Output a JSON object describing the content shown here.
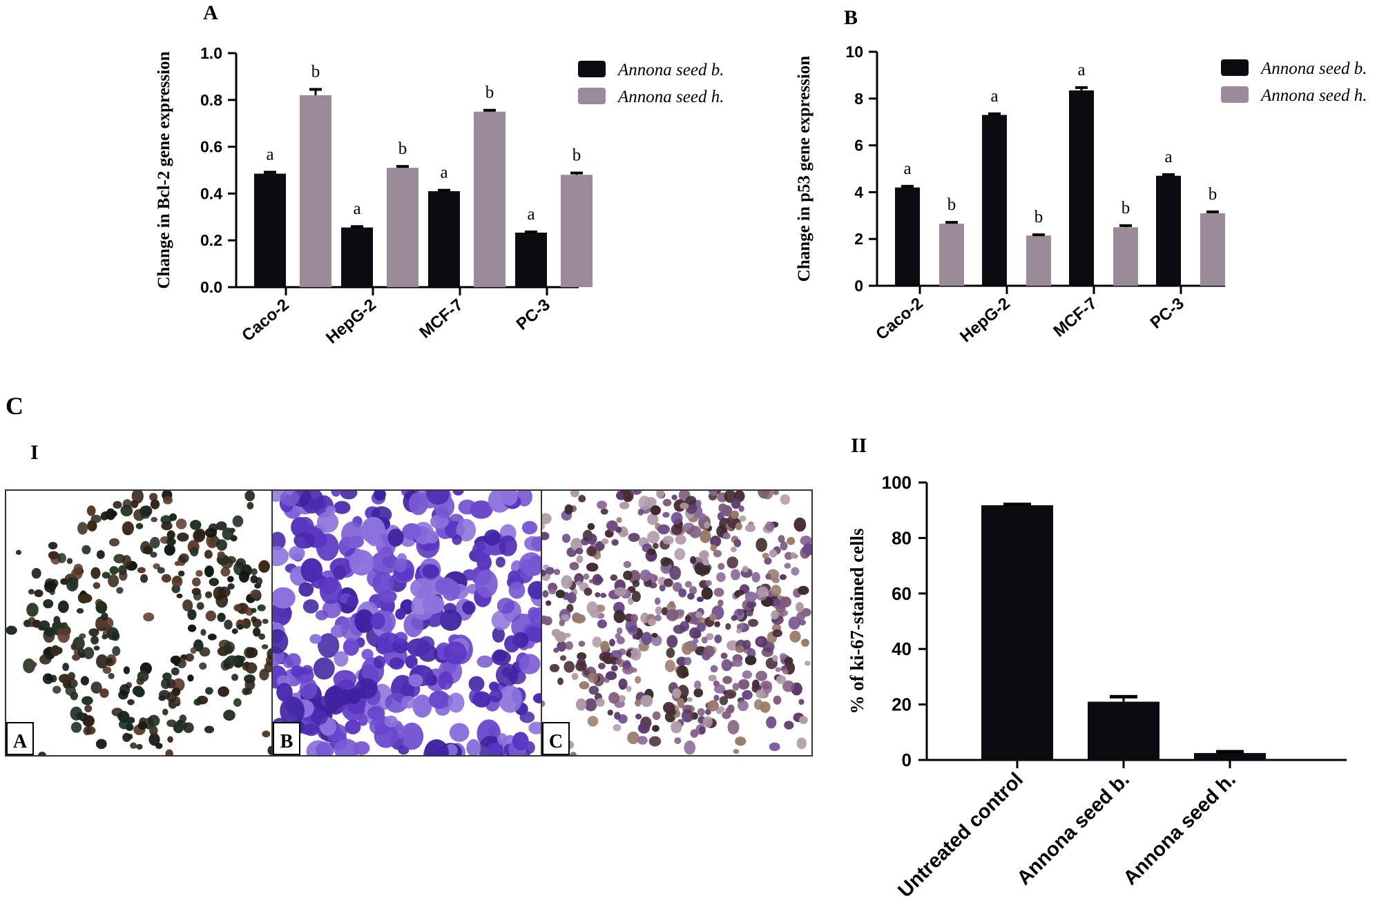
{
  "colors": {
    "seed_b": "#0d0b12",
    "seed_h": "#9b8b98",
    "axis": "#000000"
  },
  "panels": {
    "A": {
      "letter": "A"
    },
    "B": {
      "letter": "B"
    },
    "C": {
      "letter": "C",
      "sub_I": "I",
      "sub_II": "II"
    }
  },
  "micrographs": {
    "labels": [
      "A",
      "B",
      "C"
    ],
    "descriptions": [
      "dark-stained-cells",
      "purple-stained-cells",
      "mixed-stained-cells"
    ]
  },
  "chart_data": [
    {
      "id": "A",
      "type": "bar",
      "ylabel": "Change in  Bcl-2 gene expression",
      "xlabel": "",
      "categories": [
        "Caco-2",
        "HepG-2",
        "MCF-7",
        "PC-3"
      ],
      "series": [
        {
          "name": "Annona seed b.",
          "values": [
            0.485,
            0.255,
            0.41,
            0.233
          ],
          "errors": [
            0.006,
            0.004,
            0.004,
            0.003
          ],
          "labels": [
            "a",
            "a",
            "a",
            "a"
          ]
        },
        {
          "name": "Annona seed h.",
          "values": [
            0.82,
            0.51,
            0.75,
            0.48
          ],
          "errors": [
            0.025,
            0.006,
            0.006,
            0.008
          ],
          "labels": [
            "b",
            "b",
            "b",
            "b"
          ]
        }
      ],
      "ylim": [
        0,
        1.0
      ],
      "yticks": [
        "0.0",
        "0.2",
        "0.4",
        "0.6",
        "0.8",
        "1.0"
      ],
      "legend": "top-right"
    },
    {
      "id": "B",
      "type": "bar",
      "ylabel": "Change in p53 gene expression",
      "xlabel": "",
      "categories": [
        "Caco-2",
        "HepG-2",
        "MCF-7",
        "PC-3"
      ],
      "series": [
        {
          "name": "Annona seed b.",
          "values": [
            4.2,
            7.3,
            8.35,
            4.7
          ],
          "errors": [
            0.05,
            0.05,
            0.12,
            0.05
          ],
          "labels": [
            "a",
            "a",
            "a",
            "a"
          ]
        },
        {
          "name": "Annona seed h.",
          "values": [
            2.65,
            2.15,
            2.5,
            3.1
          ],
          "errors": [
            0.06,
            0.03,
            0.07,
            0.06
          ],
          "labels": [
            "b",
            "b",
            "b",
            "b"
          ]
        }
      ],
      "ylim": [
        0,
        10
      ],
      "yticks": [
        "0",
        "2",
        "4",
        "6",
        "8",
        "10"
      ],
      "legend": "top-right"
    },
    {
      "id": "C-II",
      "type": "bar",
      "ylabel": "% of ki-67-stained cells",
      "xlabel": "",
      "categories": [
        "Untreated control",
        "Annona seed b.",
        "Annona seed h."
      ],
      "values": [
        91.8,
        21.0,
        2.5
      ],
      "errors": [
        0.3,
        1.8,
        0.5
      ],
      "ylim": [
        0,
        100
      ],
      "yticks": [
        "0",
        "20",
        "40",
        "60",
        "80",
        "100"
      ]
    }
  ]
}
